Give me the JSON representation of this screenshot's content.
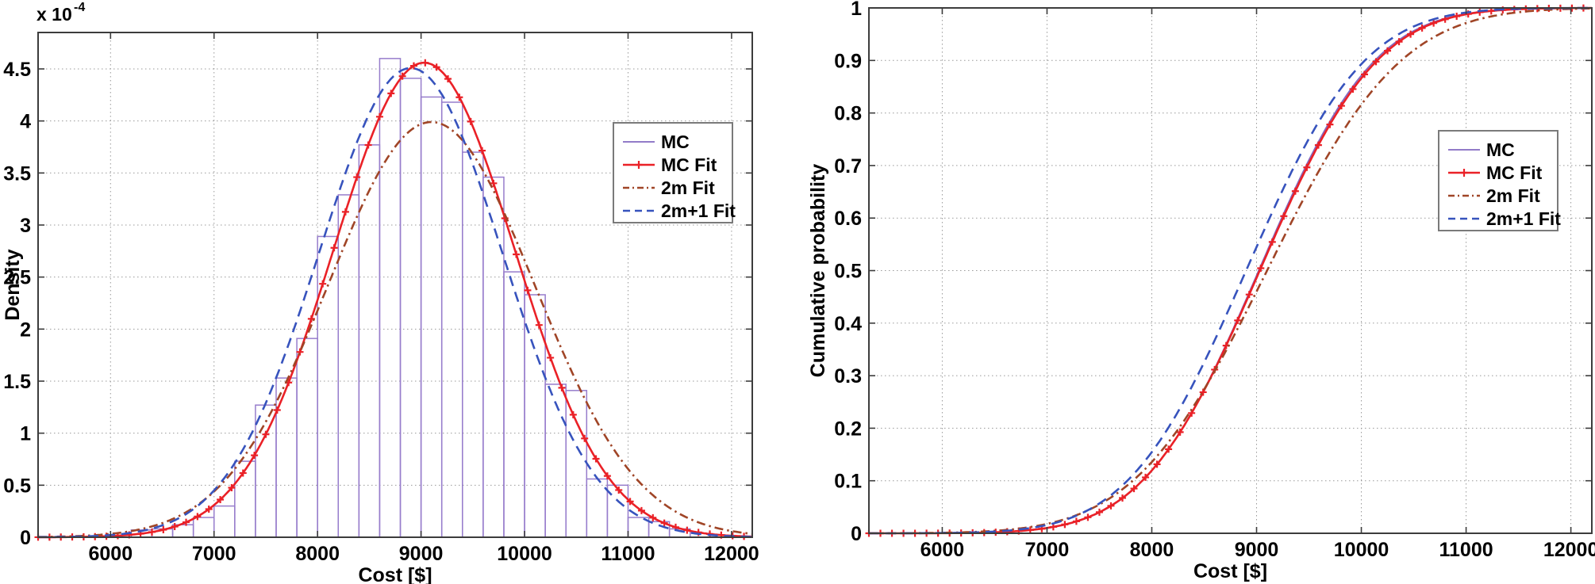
{
  "figure": {
    "background": "#ffffff",
    "colors": {
      "mc": "#8268c0",
      "mc_hist": "#977dcc",
      "mc_fit": "#ea2127",
      "fit_2m": "#a04527",
      "fit_2m_plus_1": "#3753bd",
      "axis": "#3c3c3c",
      "grid": "#999999",
      "legend_border": "#7a7a7a",
      "text": "#000000"
    }
  },
  "chart_data": [
    {
      "id": "density",
      "type": "histogram+line",
      "title": "",
      "xlabel": "Cost [$]",
      "ylabel": "Density",
      "y_scale_label": "x 10",
      "y_scale_exp": "-4",
      "xlim": [
        5300,
        12200
      ],
      "ylim_e4": [
        0,
        4.85
      ],
      "xticks": [
        6000,
        7000,
        8000,
        9000,
        10000,
        11000,
        12000
      ],
      "yticks": [
        0,
        0.5,
        1,
        1.5,
        2,
        2.5,
        3,
        3.5,
        4,
        4.5
      ],
      "grid": true,
      "legend_position": "upper-right-inside",
      "legend": [
        "MC",
        "MC Fit",
        "2m Fit",
        "2m+1 Fit"
      ],
      "histogram": {
        "name": "MC",
        "bin_start": 6200,
        "bin_width": 200,
        "heights_e4": [
          0.07,
          0.08,
          0.12,
          0.19,
          0.3,
          0.73,
          1.27,
          1.53,
          1.91,
          2.89,
          3.29,
          3.77,
          4.6,
          4.41,
          4.23,
          4.18,
          3.7,
          3.46,
          2.55,
          2.33,
          1.47,
          1.41,
          0.56,
          0.5,
          0.19,
          0.15,
          0.08
        ]
      },
      "curves": [
        {
          "name": "MC Fit",
          "shape": "normal-pdf",
          "mean": 9030,
          "sigma": 875,
          "peak_e4": 4.56,
          "style": "solid",
          "marker": "plus",
          "color_key": "mc_fit"
        },
        {
          "name": "2m Fit",
          "shape": "normal-pdf",
          "mean": 9100,
          "sigma": 1000,
          "peak_e4": 3.99,
          "style": "dashdot",
          "marker": "none",
          "color_key": "fit_2m"
        },
        {
          "name": "2m+1 Fit",
          "shape": "normal-pdf",
          "mean": 8900,
          "sigma": 885,
          "peak_e4": 4.51,
          "style": "dashed",
          "marker": "none",
          "color_key": "fit_2m_plus_1"
        }
      ]
    },
    {
      "id": "cdf",
      "type": "line",
      "title": "",
      "xlabel": "Cost [$]",
      "ylabel": "Cumulative probability",
      "xlim": [
        5300,
        12200
      ],
      "ylim": [
        0,
        1
      ],
      "xticks": [
        6000,
        7000,
        8000,
        9000,
        10000,
        11000,
        12000
      ],
      "yticks": [
        0,
        0.1,
        0.2,
        0.3,
        0.4,
        0.5,
        0.6,
        0.7,
        0.8,
        0.9,
        1
      ],
      "grid": true,
      "legend_position": "right-inside",
      "legend": [
        "MC",
        "MC Fit",
        "2m Fit",
        "2m+1 Fit"
      ],
      "curves": [
        {
          "name": "MC",
          "shape": "normal-cdf",
          "mean": 9020,
          "sigma": 865,
          "style": "solid",
          "marker": "none",
          "color_key": "mc"
        },
        {
          "name": "MC Fit",
          "shape": "normal-cdf",
          "mean": 9030,
          "sigma": 875,
          "style": "solid",
          "marker": "plus",
          "color_key": "mc_fit"
        },
        {
          "name": "2m Fit",
          "shape": "normal-cdf",
          "mean": 9100,
          "sigma": 1000,
          "style": "dashdot",
          "marker": "none",
          "color_key": "fit_2m"
        },
        {
          "name": "2m+1 Fit",
          "shape": "normal-cdf",
          "mean": 8900,
          "sigma": 885,
          "style": "dashed",
          "marker": "none",
          "color_key": "fit_2m_plus_1"
        }
      ]
    }
  ]
}
